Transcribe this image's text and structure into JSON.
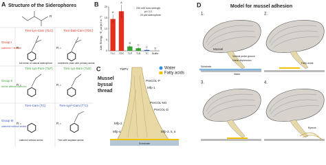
{
  "panel_a": {
    "letter": "A",
    "title": "Structure of the Siderophores",
    "r_label": "R =",
    "groups": [
      {
        "label": "Group I",
        "desc": "catechol + amine"
      },
      {
        "label": "Group II",
        "desc": "amine without catechol"
      },
      {
        "label": "Group III",
        "desc": "catechol without amine"
      }
    ],
    "compounds": [
      {
        "name": "Tren-Lys-Cam (TLC)",
        "note": "full mimic of natural siderophore"
      },
      {
        "name": "Tren-Dab-Cam (TDC)",
        "note": "shortened chain with primary amine"
      },
      {
        "name": "Tren-Lys-Pam (TLP)"
      },
      {
        "name": "Tren-Lys-Bam (TLB)"
      },
      {
        "name": "Tren-Cam (TC)",
        "note": "catechol without amine"
      },
      {
        "name": "Tren-Lys²-Cam (T°C)",
        "note": "Tren with acylated amine"
      }
    ]
  },
  "panel_b": {
    "letter": "B"
  },
  "chart_data": {
    "type": "bar",
    "annotation": [
      "200 mM ionic strength",
      "pH 3.3",
      "20 μM siderophore"
    ],
    "ylabel": "Adh. Energy, −E_ad (mJ m⁻²)",
    "categories": [
      "TLC",
      "TDC",
      "TLP",
      "TLB",
      "TC",
      "Buffer"
    ],
    "values": [
      14.5,
      18,
      2,
      1.2,
      0.4,
      0.1
    ],
    "errors": [
      2,
      3,
      0.5,
      0.5,
      0.3,
      0.1
    ],
    "letters": [
      "A",
      "A",
      "B",
      "C",
      "C",
      "D"
    ],
    "colors": [
      "#e3301f",
      "#e3301f",
      "#3aa335",
      "#3aa335",
      "#2f4fbf",
      "#888888"
    ],
    "ylim": [
      0,
      20
    ],
    "yticks": [
      0,
      5,
      10,
      15,
      20
    ]
  },
  "panel_c": {
    "letter": "C",
    "title": [
      "Mussel",
      "byssal",
      "thread"
    ],
    "legend": [
      {
        "label": "Water",
        "color": "#2f8fd8"
      },
      {
        "label": "Fatty acids",
        "color": "#f2c200"
      }
    ],
    "labels": [
      "TMPV",
      "PreCOL-P",
      "Mfp-1",
      "PreCOL-NG",
      "PreCOL-D",
      "Mfp-2",
      "Mfp-4",
      "Mfp-3, 5, 6",
      "Substrate"
    ]
  },
  "panel_d": {
    "letter": "D",
    "title": "Model for mussel adhesion",
    "steps": [
      "1.",
      "2.",
      "3.",
      "4."
    ],
    "labels": [
      "Mussel",
      "Ventral pedal groove",
      "Distal depression",
      "Substrate",
      "Water",
      "Fatty acids",
      "Byssus"
    ]
  }
}
